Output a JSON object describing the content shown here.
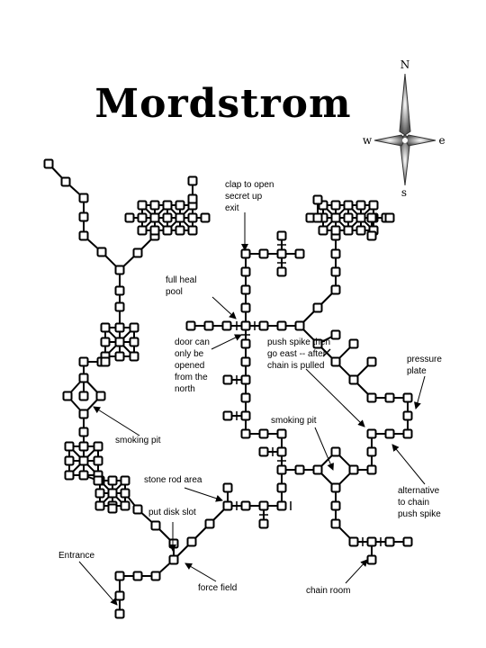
{
  "map": {
    "title": "Mordstrom",
    "compass": {
      "north": "N",
      "south": "s",
      "east": "e",
      "west": "w"
    },
    "labels": {
      "clap": [
        "clap to open",
        "secret up",
        "exit"
      ],
      "heal": [
        "full heal",
        "pool"
      ],
      "door": [
        "door can",
        "only be",
        "opened",
        "from the",
        "north"
      ],
      "spike": [
        "push spike then",
        "go east -- after",
        "chain is pulled"
      ],
      "pressure": [
        "pressure",
        "plate"
      ],
      "smoking_left": [
        "smoking pit"
      ],
      "smoking_right": [
        "smoking pit"
      ],
      "stone": [
        "stone rod area"
      ],
      "disk": [
        "put disk slot"
      ],
      "entrance": [
        "Entrance"
      ],
      "force": [
        "force field"
      ],
      "alt": [
        "alternative",
        "to chain",
        "push spike"
      ],
      "chain_room": [
        "chain room"
      ]
    }
  }
}
